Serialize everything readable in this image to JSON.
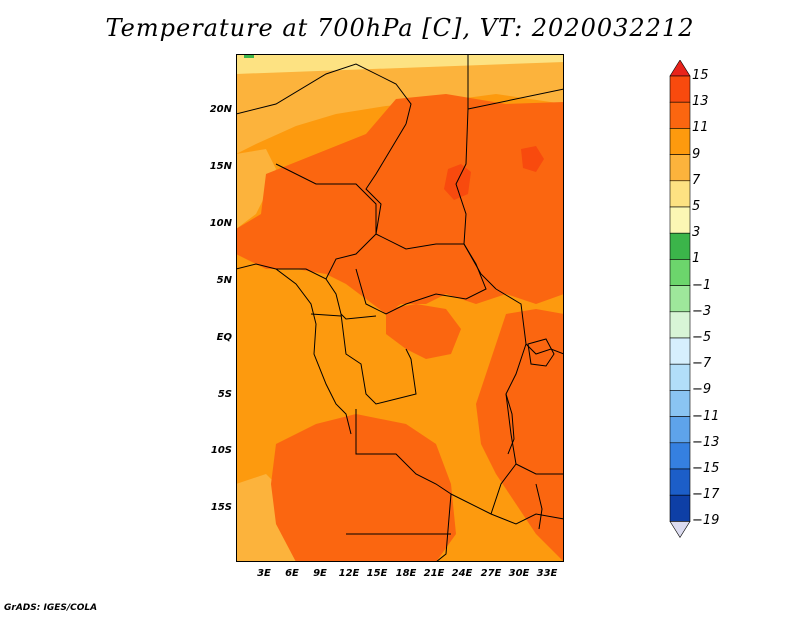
{
  "title": "Temperature at 700hPa [C], VT: 2020032212",
  "credit": "GrADS: IGES/COLA",
  "y_axis_labels": [
    "20N",
    "15N",
    "10N",
    "5N",
    "EQ",
    "5S",
    "10S",
    "15S"
  ],
  "x_axis_labels": [
    "3E",
    "6E",
    "9E",
    "12E",
    "15E",
    "18E",
    "21E",
    "24E",
    "27E",
    "30E",
    "33E"
  ],
  "colorbar": {
    "labels": [
      "15",
      "13",
      "11",
      "9",
      "7",
      "5",
      "3",
      "1",
      "−1",
      "−3",
      "−5",
      "−7",
      "−9",
      "−11",
      "−13",
      "−15",
      "−17",
      "−19"
    ],
    "colors": [
      "#e8231b",
      "#f84a0e",
      "#fb6610",
      "#fd9a0e",
      "#fcb33c",
      "#fde282",
      "#fbf7b4",
      "#3bb54a",
      "#6cd56c",
      "#9ee79b",
      "#d8f5d6",
      "#d6effd",
      "#b2def9",
      "#8ac4f2",
      "#5ea3ea",
      "#3580e0",
      "#1c5ec8",
      "#0e3fa6",
      "#0a1e78"
    ]
  },
  "field_colors": {
    "c5": "#fde282",
    "c7": "#fcb33c",
    "c9": "#fd9a0e",
    "c11": "#fb6610",
    "c13": "#f84a0e",
    "c1": "#3bb54a",
    "border": "#000000"
  }
}
